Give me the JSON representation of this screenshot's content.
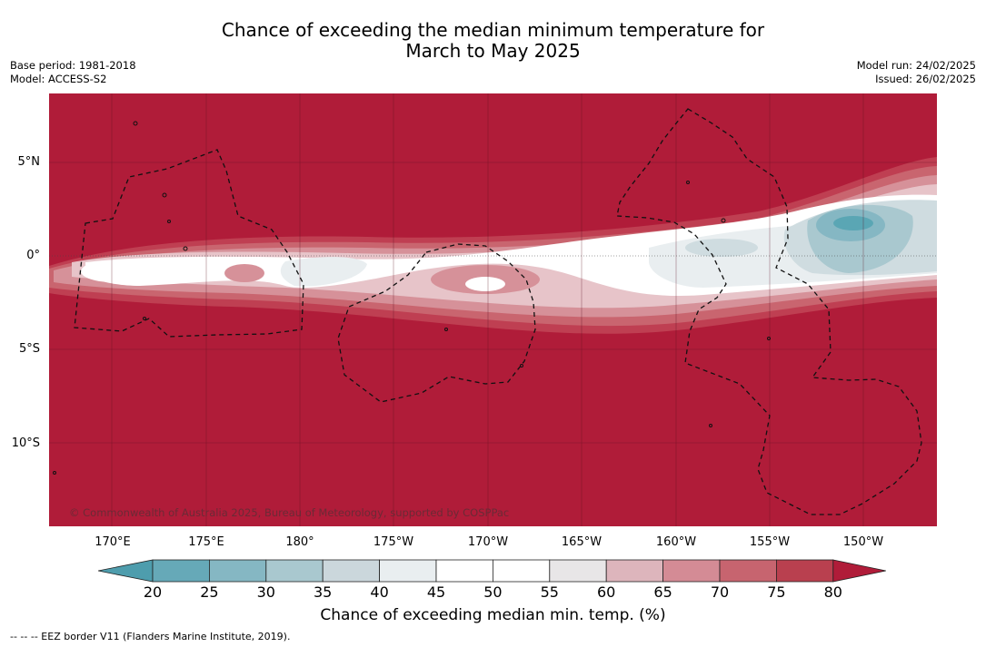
{
  "title_line1": "Chance of exceeding the median minimum temperature for",
  "title_line2": "March to May 2025",
  "meta_left": {
    "base_period": "Base period: 1981-2018",
    "model": "Model: ACCESS-S2"
  },
  "meta_right": {
    "model_run": "Model run: 24/02/2025",
    "issued": "Issued: 26/02/2025"
  },
  "copyright": "© Commonwealth of Australia 2025, Bureau of Meteorology, supported by COSPPac",
  "lat_labels": [
    "5°N",
    "0°",
    "5°S",
    "10°S"
  ],
  "lon_labels": [
    "170°E",
    "175°E",
    "180°",
    "175°W",
    "170°W",
    "165°W",
    "160°W",
    "155°W",
    "150°W"
  ],
  "colorbar": {
    "title": "Chance of exceeding median min. temp. (%)",
    "ticks": [
      "20",
      "25",
      "30",
      "35",
      "40",
      "45",
      "50",
      "55",
      "60",
      "65",
      "70",
      "75",
      "80"
    ],
    "colors": [
      "#66a9b8",
      "#85b7c3",
      "#a9c8cf",
      "#cbd7dc",
      "#e9eef0",
      "#ffffff",
      "#ffffff",
      "#e8e6e7",
      "#ddb5bc",
      "#d48b95",
      "#c7646f",
      "#b9404f"
    ],
    "under_color": "#4e9dad",
    "over_color": "#b01c39"
  },
  "map_colors": {
    "background": "#b01c39",
    "band_75": "#bf3f52",
    "band_70": "#c9656f",
    "band_65": "#d69199",
    "band_60": "#e7c4c9",
    "band_50": "#ffffff",
    "band_40": "#e9eef0",
    "band_35": "#cfdce0",
    "band_30": "#a9c8cf",
    "band_25": "#85b7c3",
    "band_20": "#5aa6b4"
  },
  "eez_legend": "--  --  -- EEZ border V11 (Flanders Marine Institute, 2019)."
}
